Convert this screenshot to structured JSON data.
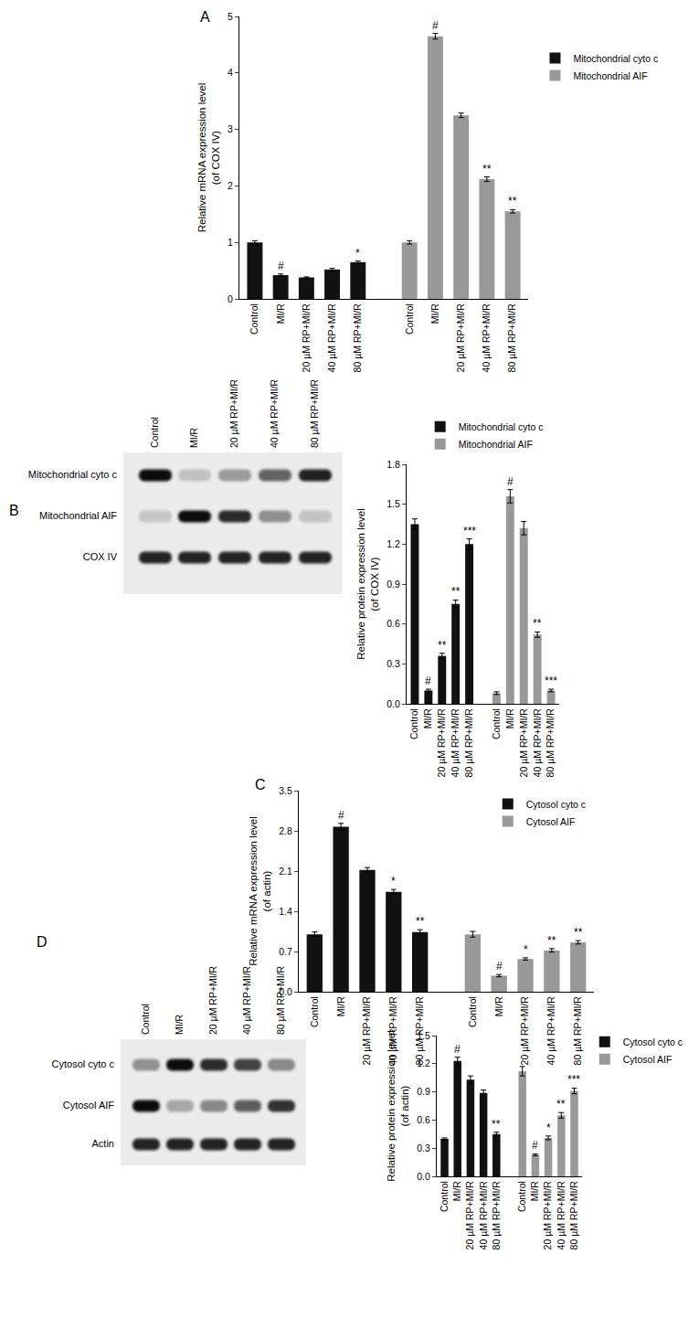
{
  "chart_data": [
    {
      "panel": "A",
      "type": "bar",
      "y_label": "Relative mRNA expression level\n(of COX IV)",
      "categories": [
        "Control",
        "MI/R",
        "20 µM RP+MI/R",
        "40 µM RP+MI/R",
        "80 µM RP+MI/R"
      ],
      "series": [
        {
          "name": "Mitochondrial cyto c",
          "color": "#111111",
          "values": [
            1.0,
            0.42,
            0.38,
            0.52,
            0.65
          ],
          "errors": [
            0.03,
            0.02,
            0.01,
            0.02,
            0.02
          ],
          "significance": [
            null,
            "#",
            null,
            null,
            "*"
          ]
        },
        {
          "name": "Mitochondrial AIF",
          "color": "#999999",
          "values": [
            1.0,
            4.65,
            3.25,
            2.12,
            1.55
          ],
          "errors": [
            0.03,
            0.05,
            0.04,
            0.04,
            0.03
          ],
          "significance": [
            null,
            "#",
            null,
            "**",
            "**"
          ]
        }
      ],
      "ylim": [
        0,
        5
      ],
      "yticks": [
        0,
        1,
        2,
        3,
        4,
        5
      ],
      "grid": false,
      "legend": "right"
    },
    {
      "panel": "B",
      "type": "bar",
      "y_label": "Relative protein expression level\n(of COX IV)",
      "categories": [
        "Control",
        "MI/R",
        "20 µM RP+MI/R",
        "40 µM RP+MI/R",
        "80 µM RP+MI/R"
      ],
      "series": [
        {
          "name": "Mitochondrial cyto c",
          "color": "#111111",
          "values": [
            1.35,
            0.1,
            0.36,
            0.75,
            1.2
          ],
          "errors": [
            0.04,
            0.01,
            0.02,
            0.03,
            0.04
          ],
          "significance": [
            null,
            "#",
            "**",
            "**",
            "***"
          ]
        },
        {
          "name": "Mitochondrial AIF",
          "color": "#999999",
          "values": [
            0.08,
            1.56,
            1.32,
            0.52,
            0.1
          ],
          "errors": [
            0.01,
            0.05,
            0.05,
            0.02,
            0.01
          ],
          "significance": [
            null,
            "#",
            null,
            "**",
            "***"
          ]
        }
      ],
      "ylim": [
        0,
        1.8
      ],
      "yticks": [
        {
          "value": 0,
          "label": "0.0"
        },
        0.3,
        0.6,
        0.9,
        1.2,
        1.5,
        1.8
      ],
      "grid": false,
      "legend": "top",
      "blot": {
        "lanes": [
          "Control",
          "MI/R",
          "20 µM RP+MI/R",
          "40 µM RP+MI/R",
          "80 µM RP+MI/R"
        ],
        "rows": [
          "Mitochondrial cyto c",
          "Mitochondrial AIF",
          "COX IV"
        ]
      }
    },
    {
      "panel": "C",
      "type": "bar",
      "y_label": "Relative mRNA expression level\n(of actin)",
      "categories": [
        "Control",
        "MI/R",
        "20 µM RP+MI/R",
        "40 µM RP+MI/R",
        "80 µM RP+MI/R"
      ],
      "series": [
        {
          "name": "Cytosol cyto c",
          "color": "#111111",
          "values": [
            1.0,
            2.87,
            2.12,
            1.74,
            1.04
          ],
          "errors": [
            0.04,
            0.06,
            0.04,
            0.04,
            0.04
          ],
          "significance": [
            null,
            "#",
            null,
            "*",
            "**"
          ]
        },
        {
          "name": "Cytosol AIF",
          "color": "#999999",
          "values": [
            1.0,
            0.28,
            0.57,
            0.72,
            0.86
          ],
          "errors": [
            0.05,
            0.02,
            0.02,
            0.03,
            0.03
          ],
          "significance": [
            null,
            "#",
            "*",
            "**",
            "**"
          ]
        }
      ],
      "ylim": [
        0,
        3.5
      ],
      "yticks": [
        {
          "value": 0,
          "label": "0.0"
        },
        0.7,
        1.4,
        2.1,
        2.8,
        3.5
      ],
      "grid": false,
      "legend": "top right"
    },
    {
      "panel": "D",
      "type": "bar",
      "y_label": "Relative protein expression level\n(of actin)",
      "categories": [
        "Control",
        "MI/R",
        "20 µM RP+MI/R",
        "40 µM RP+MI/R",
        "80 µM RP+MI/R"
      ],
      "series": [
        {
          "name": "Cytosol cyto c",
          "color": "#111111",
          "values": [
            0.4,
            1.23,
            1.03,
            0.89,
            0.45
          ],
          "errors": [
            0.01,
            0.04,
            0.04,
            0.03,
            0.02
          ],
          "significance": [
            null,
            "#",
            null,
            null,
            "**"
          ]
        },
        {
          "name": "Cytosol AIF",
          "color": "#999999",
          "values": [
            1.12,
            0.23,
            0.41,
            0.65,
            0.91
          ],
          "errors": [
            0.05,
            0.01,
            0.02,
            0.03,
            0.03
          ],
          "significance": [
            null,
            "#",
            "*",
            "**",
            "***"
          ]
        }
      ],
      "ylim": [
        0,
        1.5
      ],
      "yticks": [
        {
          "value": 0,
          "label": "0.0"
        },
        0.3,
        0.6,
        0.9,
        1.2,
        1.5
      ],
      "grid": false,
      "legend": "right",
      "blot": {
        "lanes": [
          "Control",
          "MI/R",
          "20 µM RP+MI/R",
          "40 µM RP+MI/R",
          "80 µM RP+MI/R"
        ],
        "rows": [
          "Cytosol cyto c",
          "Cytosol AIF",
          "Actin"
        ]
      }
    }
  ]
}
